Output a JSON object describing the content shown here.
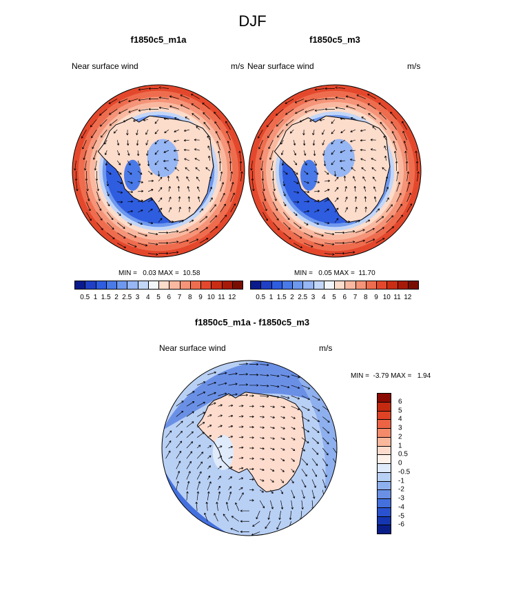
{
  "title": "DJF",
  "panels": [
    {
      "title": "f1850c5_m1a",
      "left_label": "Near surface wind",
      "units": "m/s",
      "min": "0.03",
      "max": "10.58",
      "minmax_label": "MIN =   0.03 MAX =  10.58"
    },
    {
      "title": "f1850c5_m3",
      "left_label": "Near surface wind",
      "units": "m/s",
      "min": "0.05",
      "max": "11.70",
      "minmax_label": "MIN =   0.05 MAX =  11.70"
    }
  ],
  "abs_colorbar": {
    "levels": [
      "0.5",
      "1",
      "1.5",
      "2",
      "2.5",
      "3",
      "4",
      "5",
      "6",
      "7",
      "8",
      "9",
      "10",
      "11",
      "12"
    ],
    "colors": [
      "#0a1a8c",
      "#1f3fc4",
      "#2f5de0",
      "#4a7ae8",
      "#6e98ee",
      "#96b6f4",
      "#c2d6f8",
      "#f2f6fb",
      "#fcdccb",
      "#f9b9a0",
      "#f59478",
      "#ef6d4f",
      "#e4482c",
      "#c92d14",
      "#a81a08",
      "#7a0d02"
    ]
  },
  "diff_panel": {
    "title": "f1850c5_m1a - f1850c5_m3",
    "left_label": "Near surface wind",
    "units": "m/s",
    "min": "-3.79",
    "max": "1.94",
    "minmax_label": "MIN =  -3.79 MAX =   1.94"
  },
  "diff_colorbar": {
    "levels": [
      "6",
      "5",
      "4",
      "3",
      "2",
      "1",
      "0.5",
      "0",
      "-0.5",
      "-1",
      "-2",
      "-3",
      "-4",
      "-5",
      "-6"
    ],
    "colors": [
      "#8a0b02",
      "#c42a10",
      "#e04226",
      "#ec6444",
      "#f38a6a",
      "#f9b79c",
      "#fddccd",
      "#fdf1ea",
      "#dfeafb",
      "#b9d0f5",
      "#8fb0ee",
      "#6a90e6",
      "#4470de",
      "#2a52cf",
      "#1536b0",
      "#0a1e88"
    ]
  },
  "icons": {
    "globe": "antarctic-polar-map-icon",
    "arrow": "wind-vector-icon"
  }
}
